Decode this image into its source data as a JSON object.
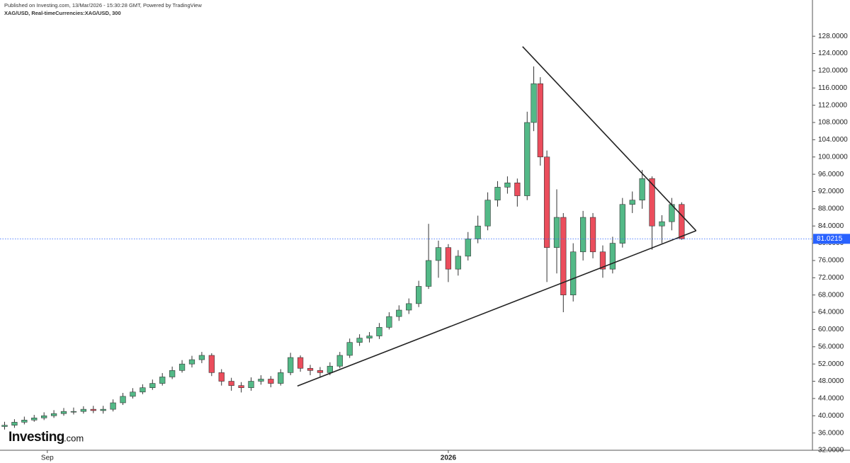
{
  "header": {
    "published": "Published on Investing.com, 13/Mar/2026 - 15:30:28 GMT, Powered by TradingView",
    "symbol": "XAG/USD, Real-timeCurrencies:XAG/USD, 300"
  },
  "logo": {
    "brand": "Investing",
    "suffix": ".com"
  },
  "chart_data": {
    "type": "candlestick",
    "x": [
      -13,
      -10,
      -7,
      -4,
      -1,
      2,
      5,
      8,
      11,
      14,
      17,
      20,
      23,
      26,
      29,
      32,
      35,
      38,
      41,
      44,
      47,
      50,
      53,
      56,
      59,
      62,
      65,
      68,
      71,
      74,
      77,
      80,
      83,
      86,
      89,
      92,
      95,
      98,
      101,
      104,
      107,
      110,
      113,
      116,
      119,
      122,
      125,
      128,
      131,
      134,
      137,
      140,
      143,
      146,
      148,
      150,
      152,
      155,
      157,
      160,
      163,
      166,
      169,
      172,
      175,
      178,
      181,
      184,
      187,
      190,
      193
    ],
    "open": [
      37.5,
      37.8,
      38.5,
      39,
      39.5,
      40,
      40.5,
      41,
      41,
      41.5,
      41.2,
      41.5,
      43,
      44.5,
      45.5,
      46.5,
      47.5,
      49,
      50.5,
      52,
      53,
      54,
      50,
      48,
      47,
      46.5,
      48,
      48.5,
      47.5,
      50,
      53.5,
      51,
      50.5,
      50,
      51.5,
      54,
      57,
      58,
      58.5,
      60.5,
      63,
      64.5,
      66,
      70,
      76,
      79,
      74,
      77,
      81,
      84,
      90,
      93,
      94,
      91,
      108,
      117,
      100,
      79,
      86,
      68,
      78,
      86,
      78,
      74,
      80,
      89,
      90,
      95,
      84,
      85,
      89
    ],
    "high": [
      38.6,
      39.2,
      39.8,
      40.2,
      40.8,
      41.3,
      41.8,
      41.9,
      42.2,
      42.3,
      42.3,
      43.8,
      45.3,
      46.4,
      47.3,
      48.4,
      49.9,
      51.4,
      52.9,
      53.9,
      54.8,
      54.5,
      50.8,
      48.8,
      47.8,
      48.9,
      49.4,
      49.2,
      50.8,
      54.6,
      54,
      51.8,
      51.3,
      52.4,
      54.8,
      57.9,
      58.9,
      59.4,
      61.5,
      64,
      65.6,
      67.2,
      71.3,
      84.5,
      80.6,
      79.8,
      78.4,
      82.6,
      86.4,
      91.8,
      94.4,
      95.5,
      95,
      110.5,
      121,
      118.5,
      101.5,
      92.5,
      87,
      80,
      87.5,
      87,
      79.5,
      81.5,
      90.5,
      92,
      97,
      95.5,
      86.5,
      90.5,
      89.5
    ],
    "low": [
      36.8,
      37.2,
      38,
      38.6,
      39,
      39.5,
      40,
      40.3,
      40.5,
      40.6,
      40.5,
      41,
      42.5,
      44,
      45,
      46,
      47,
      48.5,
      50,
      51.2,
      52.2,
      49.2,
      47,
      45.8,
      45.4,
      45.8,
      47.2,
      46.6,
      47,
      49.4,
      50.2,
      49.4,
      48.8,
      49.4,
      51,
      53.4,
      56.2,
      57,
      57.8,
      60,
      62,
      63.6,
      65.2,
      69.4,
      72,
      71,
      72.5,
      76,
      80,
      83,
      88.5,
      91.5,
      88.5,
      90,
      106,
      98,
      71,
      73,
      64,
      66.5,
      76,
      76.5,
      72,
      73,
      79,
      87,
      88,
      78.5,
      80,
      83,
      80.8
    ],
    "close": [
      37.8,
      38.5,
      39,
      39.5,
      40,
      40.5,
      41,
      41,
      41.5,
      41.2,
      41.5,
      43,
      44.5,
      45.5,
      46.5,
      47.5,
      49,
      50.5,
      52,
      53,
      54,
      50,
      48,
      47,
      46.5,
      48,
      48.5,
      47.5,
      50,
      53.5,
      51,
      50.5,
      50,
      51.5,
      54,
      57,
      58,
      58.5,
      60.5,
      63,
      64.5,
      66,
      70,
      76,
      79,
      74,
      77,
      81,
      84,
      90,
      93,
      94,
      91,
      108,
      117,
      100,
      79,
      86,
      68,
      78,
      86,
      78,
      74,
      80,
      89,
      90,
      95,
      84,
      85,
      89,
      81.0215
    ],
    "up_color": "#53b987",
    "down_color": "#eb4d5c",
    "price_line_color": "#2962ff",
    "trendlines": [
      {
        "x": [
          144.6,
          197.4
        ],
        "y": [
          125.6,
          82.9
        ]
      },
      {
        "x": [
          76.1,
          197.4
        ],
        "y": [
          46.9,
          82.9
        ]
      }
    ],
    "trendline_color": "#222222",
    "xlim": [
      -14.4,
      232.8
    ],
    "xticks": [
      {
        "value": 0,
        "label": "Sep"
      },
      {
        "value": 122,
        "label": "2026"
      }
    ],
    "ylim": [
      32,
      136.4
    ],
    "yticks": [
      {
        "value": 32,
        "label": "32.0000"
      },
      {
        "value": 36,
        "label": "36.0000"
      },
      {
        "value": 40,
        "label": "40.0000"
      },
      {
        "value": 44,
        "label": "44.0000"
      },
      {
        "value": 48,
        "label": "48.0000"
      },
      {
        "value": 52,
        "label": "52.0000"
      },
      {
        "value": 56,
        "label": "56.0000"
      },
      {
        "value": 60,
        "label": "60.0000"
      },
      {
        "value": 64,
        "label": "64.0000"
      },
      {
        "value": 68,
        "label": "68.0000"
      },
      {
        "value": 72,
        "label": "72.0000"
      },
      {
        "value": 76,
        "label": "76.0000"
      },
      {
        "value": 80,
        "label": "80.0000"
      },
      {
        "value": 84,
        "label": "84.0000"
      },
      {
        "value": 88,
        "label": "88.0000"
      },
      {
        "value": 92,
        "label": "92.0000"
      },
      {
        "value": 96,
        "label": "96.0000"
      },
      {
        "value": 100,
        "label": "100.0000"
      },
      {
        "value": 104,
        "label": "104.0000"
      },
      {
        "value": 108,
        "label": "108.0000"
      },
      {
        "value": 112,
        "label": "112.0000"
      },
      {
        "value": 116,
        "label": "116.0000"
      },
      {
        "value": 120,
        "label": "120.0000"
      },
      {
        "value": 124,
        "label": "124.0000"
      },
      {
        "value": 128,
        "label": "128.0000"
      }
    ]
  }
}
